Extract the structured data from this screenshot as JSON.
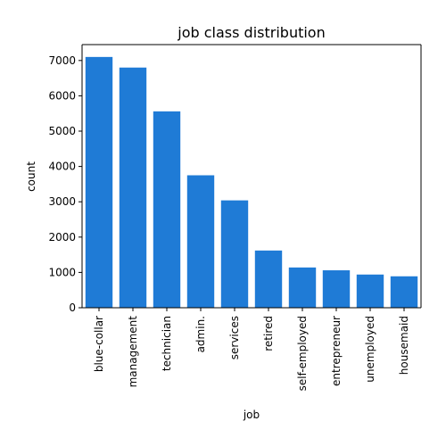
{
  "chart_data": {
    "type": "bar",
    "title": "job class distribution",
    "xlabel": "job",
    "ylabel": "count",
    "categories": [
      "blue-collar",
      "management",
      "technician",
      "admin.",
      "services",
      "retired",
      "self-employed",
      "entrepreneur",
      "unemployed",
      "housemaid"
    ],
    "values": [
      7100,
      6800,
      5560,
      3750,
      3040,
      1620,
      1140,
      1060,
      940,
      890
    ],
    "ylim": [
      0,
      7450
    ],
    "yticks": [
      0,
      1000,
      2000,
      3000,
      4000,
      5000,
      6000,
      7000
    ],
    "grid": false,
    "bar_color": "#1f7bd6"
  }
}
